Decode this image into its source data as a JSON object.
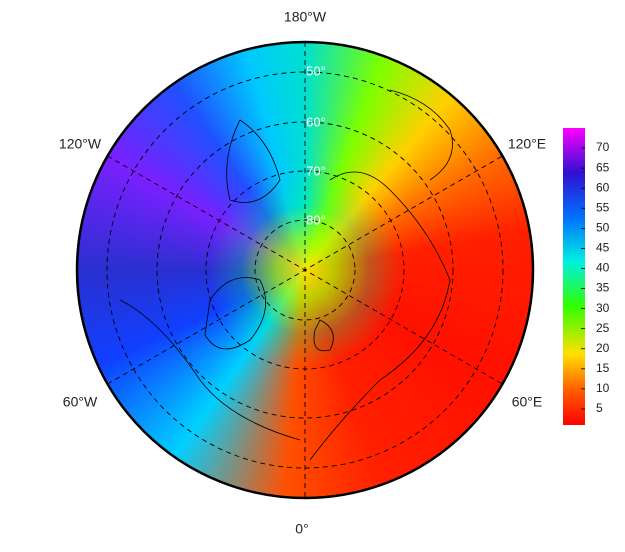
{
  "map": {
    "longitude_labels": [
      "180°W",
      "120°W",
      "120°E",
      "60°W",
      "60°E",
      "0°"
    ],
    "latitude_labels": [
      "50°",
      "60°",
      "70°",
      "80°"
    ],
    "colorbar": {
      "range": [
        1,
        75
      ],
      "ticks": [
        5,
        10,
        15,
        20,
        25,
        30,
        35,
        40,
        45,
        50,
        55,
        60,
        65,
        70
      ]
    }
  }
}
